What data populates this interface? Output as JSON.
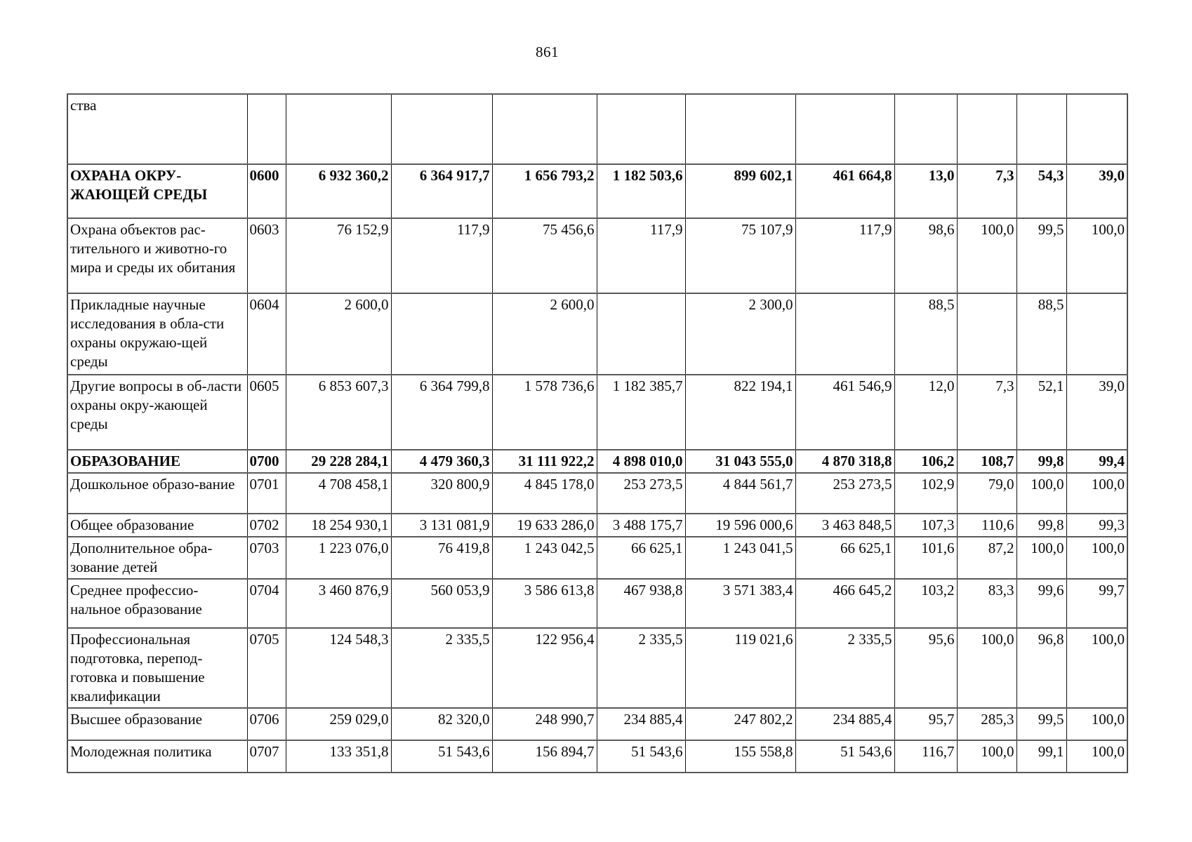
{
  "page": {
    "number": "861"
  },
  "table": {
    "continuation_text": "ства",
    "rows": [
      {
        "code": "0600",
        "name": "ОХРАНА ОКРУ-ЖАЮЩЕЙ СРЕДЫ",
        "bold": true,
        "values": [
          "6 932 360,2",
          "6 364 917,7",
          "1 656 793,2",
          "1 182 503,6",
          "899 602,1",
          "461 664,8",
          "13,0",
          "7,3",
          "54,3",
          "39,0"
        ]
      },
      {
        "code": "0603",
        "name": "Охрана объектов рас-тительного и животно-го мира и среды их обитания",
        "bold": false,
        "values": [
          "76 152,9",
          "117,9",
          "75 456,6",
          "117,9",
          "75 107,9",
          "117,9",
          "98,6",
          "100,0",
          "99,5",
          "100,0"
        ]
      },
      {
        "code": "0604",
        "name": "Прикладные научные исследования в обла-сти охраны окружаю-щей среды",
        "bold": false,
        "values": [
          "2 600,0",
          "",
          "2 600,0",
          "",
          "2 300,0",
          "",
          "88,5",
          "",
          "88,5",
          ""
        ]
      },
      {
        "code": "0605",
        "name": "Другие вопросы в об-ласти охраны окру-жающей среды",
        "bold": false,
        "values": [
          "6 853 607,3",
          "6 364 799,8",
          "1 578 736,6",
          "1 182 385,7",
          "822 194,1",
          "461 546,9",
          "12,0",
          "7,3",
          "52,1",
          "39,0"
        ]
      },
      {
        "code": "0700",
        "name": "ОБРАЗОВАНИЕ",
        "bold": true,
        "values": [
          "29 228 284,1",
          "4 479 360,3",
          "31 111 922,2",
          "4 898 010,0",
          "31 043 555,0",
          "4 870 318,8",
          "106,2",
          "108,7",
          "99,8",
          "99,4"
        ]
      },
      {
        "code": "0701",
        "name": "Дошкольное образо-вание",
        "bold": false,
        "values": [
          "4 708 458,1",
          "320 800,9",
          "4 845 178,0",
          "253 273,5",
          "4 844 561,7",
          "253 273,5",
          "102,9",
          "79,0",
          "100,0",
          "100,0"
        ]
      },
      {
        "code": "0702",
        "name": "Общее образование",
        "bold": false,
        "values": [
          "18 254 930,1",
          "3 131 081,9",
          "19 633 286,0",
          "3 488 175,7",
          "19 596 000,6",
          "3 463 848,5",
          "107,3",
          "110,6",
          "99,8",
          "99,3"
        ]
      },
      {
        "code": "0703",
        "name": "Дополнительное обра-зование детей",
        "bold": false,
        "values": [
          "1 223 076,0",
          "76 419,8",
          "1 243 042,5",
          "66 625,1",
          "1 243 041,5",
          "66 625,1",
          "101,6",
          "87,2",
          "100,0",
          "100,0"
        ]
      },
      {
        "code": "0704",
        "name": "Среднее профессио-нальное образование",
        "bold": false,
        "values": [
          "3 460 876,9",
          "560 053,9",
          "3 586 613,8",
          "467 938,8",
          "3 571 383,4",
          "466 645,2",
          "103,2",
          "83,3",
          "99,6",
          "99,7"
        ]
      },
      {
        "code": "0705",
        "name": "Профессиональная подготовка, перепод-готовка и повышение квалификации",
        "bold": false,
        "values": [
          "124 548,3",
          "2 335,5",
          "122 956,4",
          "2 335,5",
          "119 021,6",
          "2 335,5",
          "95,6",
          "100,0",
          "96,8",
          "100,0"
        ]
      },
      {
        "code": "0706",
        "name": "Высшее образование",
        "bold": false,
        "values": [
          "259 029,0",
          "82 320,0",
          "248 990,7",
          "234 885,4",
          "247 802,2",
          "234 885,4",
          "95,7",
          "285,3",
          "99,5",
          "100,0"
        ]
      },
      {
        "code": "0707",
        "name": "Молодежная политика",
        "bold": false,
        "values": [
          "133 351,8",
          "51 543,6",
          "156 894,7",
          "51 543,6",
          "155 558,8",
          "51 543,6",
          "116,7",
          "100,0",
          "99,1",
          "100,0"
        ]
      }
    ]
  }
}
